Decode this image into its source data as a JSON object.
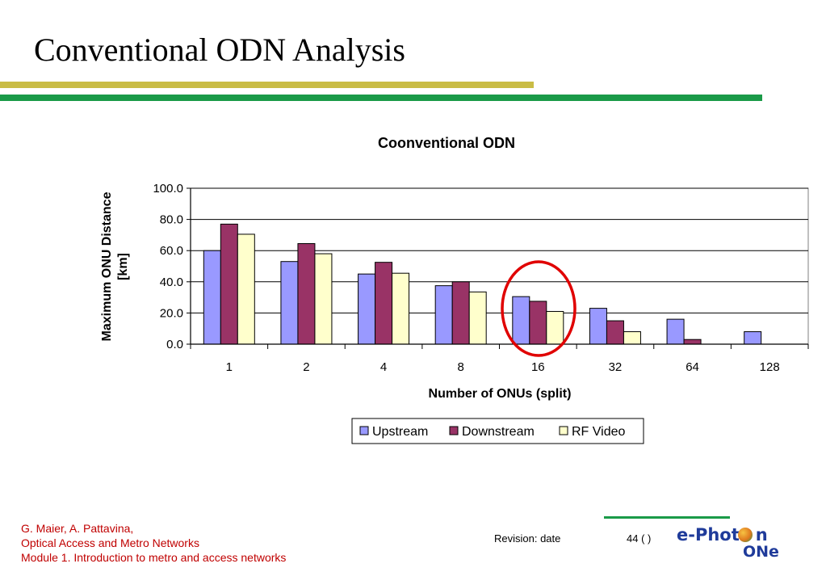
{
  "slide": {
    "title": "Conventional ODN Analysis"
  },
  "colors": {
    "gold_rule": "#c9bc45",
    "green_rule": "#1a9a48",
    "footer_text": "#c00000",
    "highlight_circle": "#e00000"
  },
  "chart_data": {
    "type": "bar",
    "title": "Coonventional ODN",
    "xlabel": "Number of ONUs (split)",
    "ylabel": "Maximum ONU Distance [km]",
    "ylim": [
      0,
      100
    ],
    "yticks": [
      "0.0",
      "20.0",
      "40.0",
      "60.0",
      "80.0",
      "100.0"
    ],
    "grid": true,
    "legend_position": "bottom",
    "categories": [
      "1",
      "2",
      "4",
      "8",
      "16",
      "32",
      "64",
      "128"
    ],
    "highlighted_category": "16",
    "series": [
      {
        "name": "Upstream",
        "color": "#9999ff",
        "values": [
          60,
          53,
          45,
          37.5,
          30.5,
          23,
          16,
          8
        ]
      },
      {
        "name": "Downstream",
        "color": "#993366",
        "values": [
          77,
          64.5,
          52.5,
          40,
          27.5,
          15,
          3,
          0
        ]
      },
      {
        "name": "RF Video",
        "color": "#ffffcc",
        "values": [
          70.5,
          58,
          45.5,
          33.5,
          21,
          8,
          0,
          0
        ]
      }
    ]
  },
  "footer": {
    "authors": "G. Maier, A. Pattavina,",
    "course": "Optical Access and Metro Networks",
    "module": "Module 1. Introduction to metro and access networks",
    "revision": "Revision: date",
    "page": "44 (   )"
  },
  "logo": {
    "line1": "e-Phot",
    "line1_end": "n",
    "line2": "ONe"
  }
}
